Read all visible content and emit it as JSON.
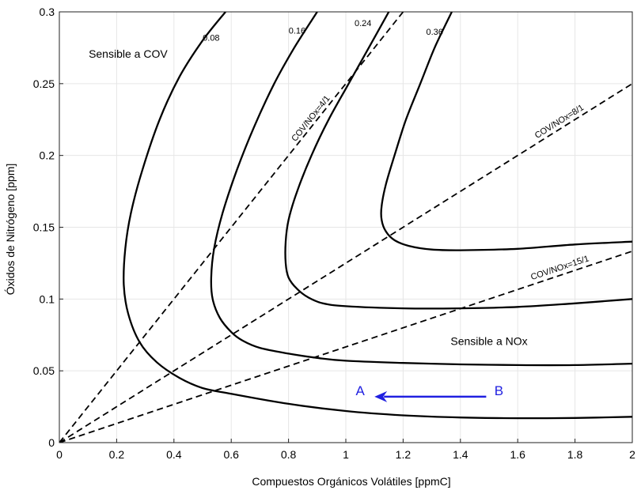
{
  "chart_data": {
    "type": "line",
    "title": "",
    "xlabel": "Compuestos Orgánicos Volátiles [ppmC]",
    "ylabel": "Óxidos de Nitrógeno [ppm]",
    "xlim": [
      0,
      2
    ],
    "ylim": [
      0,
      0.3
    ],
    "grid": true,
    "x_ticks": [
      "0",
      "0.2",
      "0.4",
      "0.6",
      "0.8",
      "1",
      "1.2",
      "1.4",
      "1.6",
      "1.8",
      "2"
    ],
    "y_ticks": [
      "0",
      "0.05",
      "0.1",
      "0.15",
      "0.2",
      "0.25",
      "0.3"
    ],
    "isopleths": [
      {
        "label": "0.08",
        "points": [
          [
            2.0,
            0.018
          ],
          [
            1.8,
            0.0172
          ],
          [
            1.6,
            0.017
          ],
          [
            1.4,
            0.0175
          ],
          [
            1.2,
            0.019
          ],
          [
            1.0,
            0.022
          ],
          [
            0.8,
            0.027
          ],
          [
            0.6,
            0.034
          ],
          [
            0.5,
            0.038
          ],
          [
            0.42,
            0.045
          ],
          [
            0.34,
            0.056
          ],
          [
            0.28,
            0.07
          ],
          [
            0.24,
            0.09
          ],
          [
            0.225,
            0.11
          ],
          [
            0.23,
            0.135
          ],
          [
            0.25,
            0.16
          ],
          [
            0.29,
            0.19
          ],
          [
            0.35,
            0.225
          ],
          [
            0.42,
            0.255
          ],
          [
            0.5,
            0.28
          ],
          [
            0.58,
            0.3
          ]
        ]
      },
      {
        "label": "0.16",
        "points": [
          [
            2.0,
            0.055
          ],
          [
            1.8,
            0.054
          ],
          [
            1.6,
            0.054
          ],
          [
            1.4,
            0.0545
          ],
          [
            1.2,
            0.0555
          ],
          [
            1.0,
            0.057
          ],
          [
            0.9,
            0.059
          ],
          [
            0.8,
            0.062
          ],
          [
            0.7,
            0.066
          ],
          [
            0.64,
            0.071
          ],
          [
            0.6,
            0.077
          ],
          [
            0.56,
            0.087
          ],
          [
            0.535,
            0.1
          ],
          [
            0.53,
            0.115
          ],
          [
            0.54,
            0.135
          ],
          [
            0.57,
            0.16
          ],
          [
            0.62,
            0.19
          ],
          [
            0.68,
            0.22
          ],
          [
            0.75,
            0.25
          ],
          [
            0.82,
            0.275
          ],
          [
            0.9,
            0.3
          ]
        ]
      },
      {
        "label": "0.24",
        "points": [
          [
            2.0,
            0.1
          ],
          [
            1.8,
            0.097
          ],
          [
            1.6,
            0.0945
          ],
          [
            1.4,
            0.0935
          ],
          [
            1.2,
            0.0935
          ],
          [
            1.0,
            0.095
          ],
          [
            0.92,
            0.097
          ],
          [
            0.87,
            0.101
          ],
          [
            0.83,
            0.107
          ],
          [
            0.8,
            0.115
          ],
          [
            0.79,
            0.125
          ],
          [
            0.79,
            0.14
          ],
          [
            0.8,
            0.155
          ],
          [
            0.83,
            0.175
          ],
          [
            0.88,
            0.2
          ],
          [
            0.94,
            0.225
          ],
          [
            1.01,
            0.25
          ],
          [
            1.08,
            0.275
          ],
          [
            1.15,
            0.3
          ]
        ]
      },
      {
        "label": "0.36",
        "points": [
          [
            2.0,
            0.14
          ],
          [
            1.8,
            0.138
          ],
          [
            1.6,
            0.135
          ],
          [
            1.4,
            0.134
          ],
          [
            1.3,
            0.1345
          ],
          [
            1.22,
            0.137
          ],
          [
            1.17,
            0.141
          ],
          [
            1.14,
            0.147
          ],
          [
            1.125,
            0.155
          ],
          [
            1.125,
            0.165
          ],
          [
            1.14,
            0.18
          ],
          [
            1.17,
            0.2
          ],
          [
            1.21,
            0.225
          ],
          [
            1.26,
            0.25
          ],
          [
            1.31,
            0.275
          ],
          [
            1.37,
            0.3
          ]
        ]
      }
    ],
    "ratio_lines": [
      {
        "label": "COV/NOx=4/1",
        "from": [
          0,
          0
        ],
        "to": [
          1.2,
          0.3
        ]
      },
      {
        "label": "COV/NOx=8/1",
        "from": [
          0,
          0
        ],
        "to": [
          2.0,
          0.25
        ]
      },
      {
        "label": "COV/NOx=15/1",
        "from": [
          0,
          0
        ],
        "to": [
          2.0,
          0.1333
        ]
      }
    ],
    "annotations": [
      {
        "text": "Sensible a COV",
        "x": 0.24,
        "y": 0.268
      },
      {
        "text": "Sensible a NOx",
        "x": 1.5,
        "y": 0.068
      }
    ],
    "arrow": {
      "from": [
        1.49,
        0.032
      ],
      "to": [
        1.1,
        0.032
      ],
      "start_label": "B",
      "end_label": "A",
      "color": "#2020e0"
    }
  }
}
